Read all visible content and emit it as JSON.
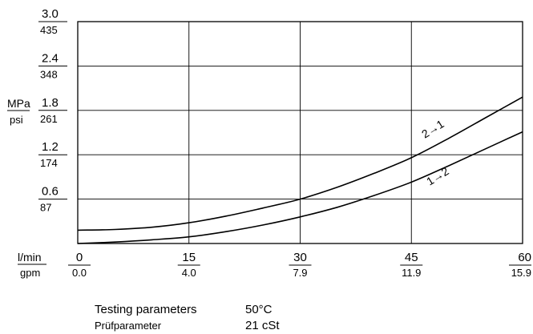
{
  "chart_data": {
    "type": "line",
    "xlabel": "l/min",
    "xlabel_secondary": "gpm",
    "ylabel": "MPa",
    "ylabel_secondary": "psi",
    "xlim": [
      0,
      60
    ],
    "ylim": [
      0,
      3.0
    ],
    "grid": true,
    "x_ticks": [
      {
        "primary": "0",
        "secondary": "0.0"
      },
      {
        "primary": "15",
        "secondary": "4.0"
      },
      {
        "primary": "30",
        "secondary": "7.9"
      },
      {
        "primary": "45",
        "secondary": "11.9"
      },
      {
        "primary": "60",
        "secondary": "15.9"
      }
    ],
    "y_ticks": [
      {
        "primary": "0.6",
        "secondary": "87"
      },
      {
        "primary": "1.2",
        "secondary": "174"
      },
      {
        "primary": "1.8",
        "secondary": "261"
      },
      {
        "primary": "2.4",
        "secondary": "348"
      },
      {
        "primary": "3.0",
        "secondary": "435"
      }
    ],
    "series": [
      {
        "name": "2→1",
        "x": [
          0,
          5,
          10,
          15,
          20,
          25,
          30,
          35,
          40,
          45,
          50,
          55,
          60
        ],
        "y": [
          0.18,
          0.19,
          0.22,
          0.28,
          0.37,
          0.48,
          0.6,
          0.76,
          0.95,
          1.16,
          1.42,
          1.7,
          1.98
        ]
      },
      {
        "name": "1→2",
        "x": [
          0,
          5,
          10,
          15,
          20,
          25,
          30,
          35,
          40,
          45,
          50,
          55,
          60
        ],
        "y": [
          0.0,
          0.02,
          0.05,
          0.09,
          0.16,
          0.25,
          0.36,
          0.49,
          0.65,
          0.83,
          1.05,
          1.28,
          1.51
        ]
      }
    ]
  },
  "testing": {
    "label_en": "Testing parameters",
    "label_de": "Prüfparameter",
    "temperature": "50°C",
    "viscosity": "21 cSt"
  }
}
